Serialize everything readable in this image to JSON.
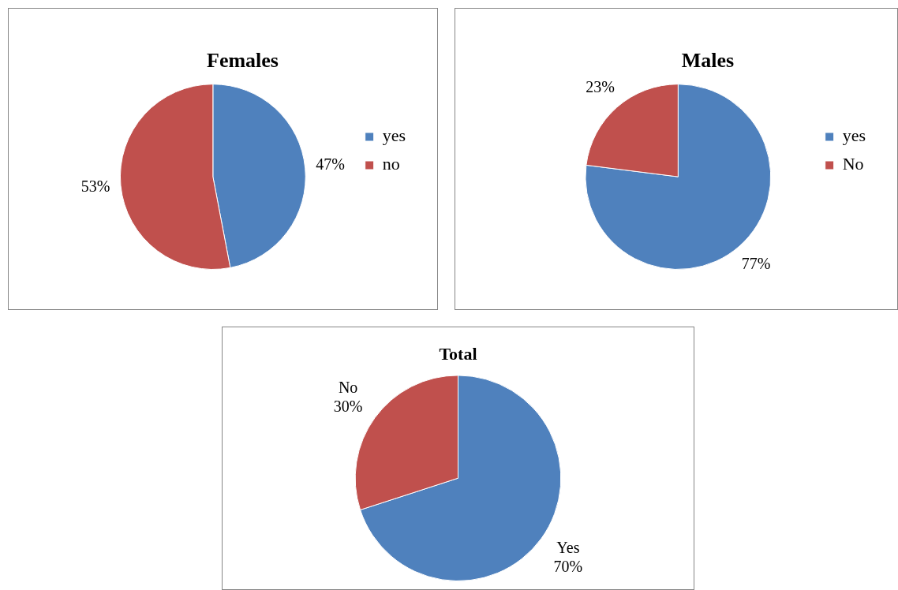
{
  "chart_data": [
    {
      "type": "pie",
      "title": "Females",
      "categories": [
        "yes",
        "no"
      ],
      "values": [
        47,
        53
      ],
      "colors": [
        "#4f81bd",
        "#c0504d"
      ],
      "value_labels": [
        "47%",
        "53%"
      ],
      "legend": "right"
    },
    {
      "type": "pie",
      "title": "Males",
      "categories": [
        "yes",
        "No"
      ],
      "values": [
        77,
        23
      ],
      "colors": [
        "#4f81bd",
        "#c0504d"
      ],
      "value_labels": [
        "77%",
        "23%"
      ],
      "legend": "right"
    },
    {
      "type": "pie",
      "title": "Total",
      "categories": [
        "Yes",
        "No"
      ],
      "values": [
        70,
        30
      ],
      "colors": [
        "#4f81bd",
        "#c0504d"
      ],
      "value_labels": [
        "70%",
        "30%"
      ]
    }
  ]
}
